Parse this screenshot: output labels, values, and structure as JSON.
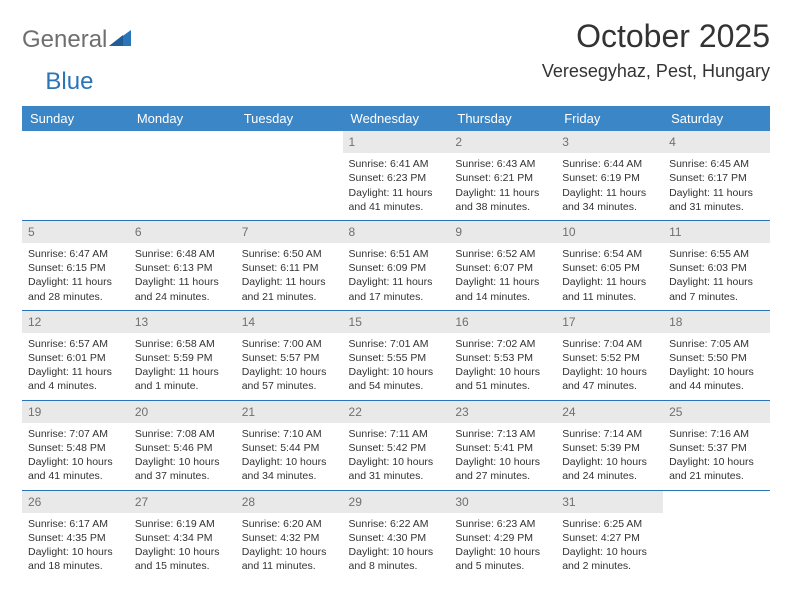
{
  "logo": {
    "text1": "General",
    "text2": "Blue"
  },
  "title": "October 2025",
  "location": "Veresegyhaz, Pest, Hungary",
  "colors": {
    "header_bg": "#3b86c6",
    "header_text": "#ffffff",
    "border": "#2a74b8",
    "daynum_bg": "#e9e9e9",
    "daynum_text": "#707070",
    "body_text": "#333333",
    "logo_gray": "#6f6f6f",
    "logo_blue": "#2a74b8"
  },
  "weekdays": [
    "Sunday",
    "Monday",
    "Tuesday",
    "Wednesday",
    "Thursday",
    "Friday",
    "Saturday"
  ],
  "weeks": [
    [
      {
        "n": "",
        "sr": "",
        "ss": "",
        "dl": ""
      },
      {
        "n": "",
        "sr": "",
        "ss": "",
        "dl": ""
      },
      {
        "n": "",
        "sr": "",
        "ss": "",
        "dl": ""
      },
      {
        "n": "1",
        "sr": "Sunrise: 6:41 AM",
        "ss": "Sunset: 6:23 PM",
        "dl": "Daylight: 11 hours and 41 minutes."
      },
      {
        "n": "2",
        "sr": "Sunrise: 6:43 AM",
        "ss": "Sunset: 6:21 PM",
        "dl": "Daylight: 11 hours and 38 minutes."
      },
      {
        "n": "3",
        "sr": "Sunrise: 6:44 AM",
        "ss": "Sunset: 6:19 PM",
        "dl": "Daylight: 11 hours and 34 minutes."
      },
      {
        "n": "4",
        "sr": "Sunrise: 6:45 AM",
        "ss": "Sunset: 6:17 PM",
        "dl": "Daylight: 11 hours and 31 minutes."
      }
    ],
    [
      {
        "n": "5",
        "sr": "Sunrise: 6:47 AM",
        "ss": "Sunset: 6:15 PM",
        "dl": "Daylight: 11 hours and 28 minutes."
      },
      {
        "n": "6",
        "sr": "Sunrise: 6:48 AM",
        "ss": "Sunset: 6:13 PM",
        "dl": "Daylight: 11 hours and 24 minutes."
      },
      {
        "n": "7",
        "sr": "Sunrise: 6:50 AM",
        "ss": "Sunset: 6:11 PM",
        "dl": "Daylight: 11 hours and 21 minutes."
      },
      {
        "n": "8",
        "sr": "Sunrise: 6:51 AM",
        "ss": "Sunset: 6:09 PM",
        "dl": "Daylight: 11 hours and 17 minutes."
      },
      {
        "n": "9",
        "sr": "Sunrise: 6:52 AM",
        "ss": "Sunset: 6:07 PM",
        "dl": "Daylight: 11 hours and 14 minutes."
      },
      {
        "n": "10",
        "sr": "Sunrise: 6:54 AM",
        "ss": "Sunset: 6:05 PM",
        "dl": "Daylight: 11 hours and 11 minutes."
      },
      {
        "n": "11",
        "sr": "Sunrise: 6:55 AM",
        "ss": "Sunset: 6:03 PM",
        "dl": "Daylight: 11 hours and 7 minutes."
      }
    ],
    [
      {
        "n": "12",
        "sr": "Sunrise: 6:57 AM",
        "ss": "Sunset: 6:01 PM",
        "dl": "Daylight: 11 hours and 4 minutes."
      },
      {
        "n": "13",
        "sr": "Sunrise: 6:58 AM",
        "ss": "Sunset: 5:59 PM",
        "dl": "Daylight: 11 hours and 1 minute."
      },
      {
        "n": "14",
        "sr": "Sunrise: 7:00 AM",
        "ss": "Sunset: 5:57 PM",
        "dl": "Daylight: 10 hours and 57 minutes."
      },
      {
        "n": "15",
        "sr": "Sunrise: 7:01 AM",
        "ss": "Sunset: 5:55 PM",
        "dl": "Daylight: 10 hours and 54 minutes."
      },
      {
        "n": "16",
        "sr": "Sunrise: 7:02 AM",
        "ss": "Sunset: 5:53 PM",
        "dl": "Daylight: 10 hours and 51 minutes."
      },
      {
        "n": "17",
        "sr": "Sunrise: 7:04 AM",
        "ss": "Sunset: 5:52 PM",
        "dl": "Daylight: 10 hours and 47 minutes."
      },
      {
        "n": "18",
        "sr": "Sunrise: 7:05 AM",
        "ss": "Sunset: 5:50 PM",
        "dl": "Daylight: 10 hours and 44 minutes."
      }
    ],
    [
      {
        "n": "19",
        "sr": "Sunrise: 7:07 AM",
        "ss": "Sunset: 5:48 PM",
        "dl": "Daylight: 10 hours and 41 minutes."
      },
      {
        "n": "20",
        "sr": "Sunrise: 7:08 AM",
        "ss": "Sunset: 5:46 PM",
        "dl": "Daylight: 10 hours and 37 minutes."
      },
      {
        "n": "21",
        "sr": "Sunrise: 7:10 AM",
        "ss": "Sunset: 5:44 PM",
        "dl": "Daylight: 10 hours and 34 minutes."
      },
      {
        "n": "22",
        "sr": "Sunrise: 7:11 AM",
        "ss": "Sunset: 5:42 PM",
        "dl": "Daylight: 10 hours and 31 minutes."
      },
      {
        "n": "23",
        "sr": "Sunrise: 7:13 AM",
        "ss": "Sunset: 5:41 PM",
        "dl": "Daylight: 10 hours and 27 minutes."
      },
      {
        "n": "24",
        "sr": "Sunrise: 7:14 AM",
        "ss": "Sunset: 5:39 PM",
        "dl": "Daylight: 10 hours and 24 minutes."
      },
      {
        "n": "25",
        "sr": "Sunrise: 7:16 AM",
        "ss": "Sunset: 5:37 PM",
        "dl": "Daylight: 10 hours and 21 minutes."
      }
    ],
    [
      {
        "n": "26",
        "sr": "Sunrise: 6:17 AM",
        "ss": "Sunset: 4:35 PM",
        "dl": "Daylight: 10 hours and 18 minutes."
      },
      {
        "n": "27",
        "sr": "Sunrise: 6:19 AM",
        "ss": "Sunset: 4:34 PM",
        "dl": "Daylight: 10 hours and 15 minutes."
      },
      {
        "n": "28",
        "sr": "Sunrise: 6:20 AM",
        "ss": "Sunset: 4:32 PM",
        "dl": "Daylight: 10 hours and 11 minutes."
      },
      {
        "n": "29",
        "sr": "Sunrise: 6:22 AM",
        "ss": "Sunset: 4:30 PM",
        "dl": "Daylight: 10 hours and 8 minutes."
      },
      {
        "n": "30",
        "sr": "Sunrise: 6:23 AM",
        "ss": "Sunset: 4:29 PM",
        "dl": "Daylight: 10 hours and 5 minutes."
      },
      {
        "n": "31",
        "sr": "Sunrise: 6:25 AM",
        "ss": "Sunset: 4:27 PM",
        "dl": "Daylight: 10 hours and 2 minutes."
      },
      {
        "n": "",
        "sr": "",
        "ss": "",
        "dl": ""
      }
    ]
  ]
}
